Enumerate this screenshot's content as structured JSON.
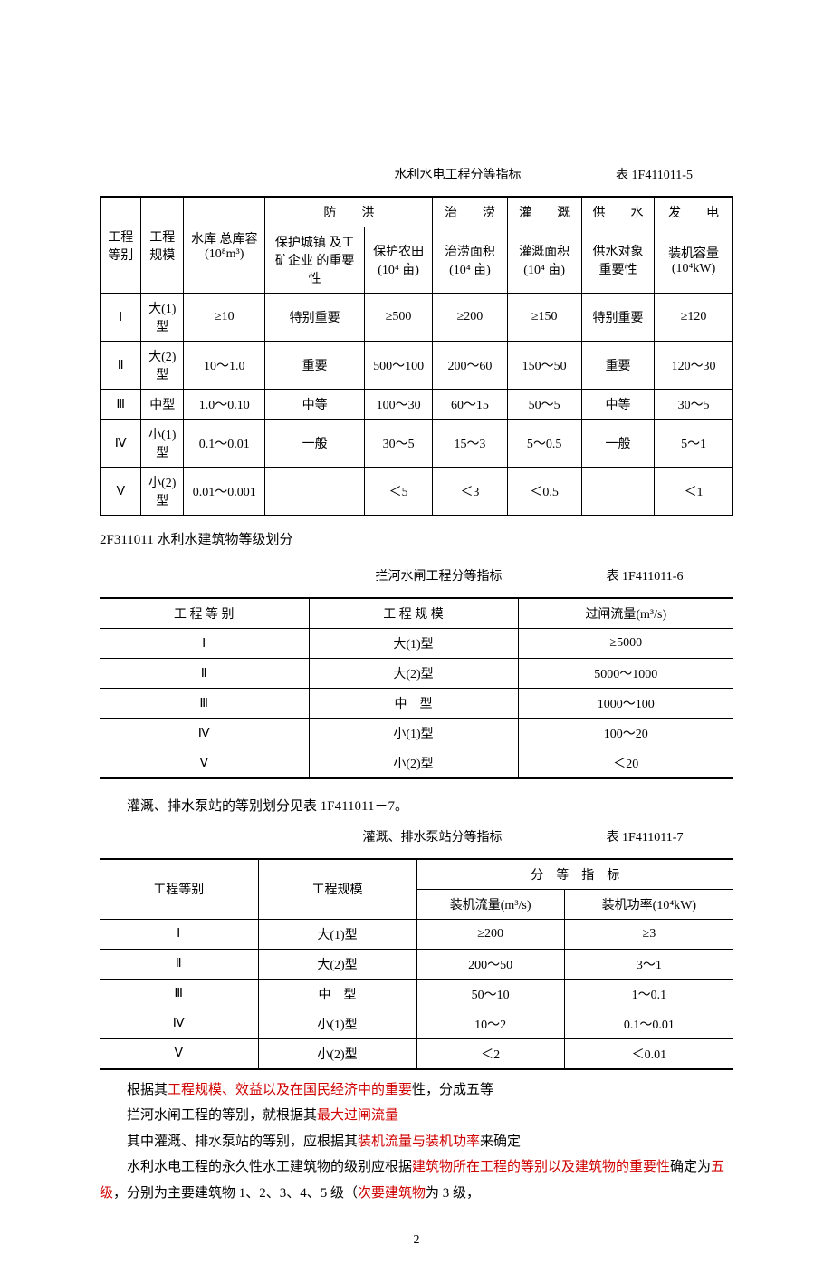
{
  "table1": {
    "title": "水利水电工程分等指标",
    "label": "表 1F411011-5",
    "headers": {
      "c1": "工程\n等别",
      "c2": "工程\n规模",
      "c3": "水库\n总库容\n(10⁸m³)",
      "g1": "防　　洪",
      "g1a": "保护城镇\n及工矿企业\n的重要性",
      "g1b": "保护农田\n(10⁴ 亩)",
      "g2": "治　　涝",
      "g2a": "治涝面积\n(10⁴ 亩)",
      "g3": "灌　　溉",
      "g3a": "灌溉面积\n(10⁴ 亩)",
      "g4": "供　　水",
      "g4a": "供水对象\n重要性",
      "g5": "发　　电",
      "g5a": "装机容量\n(10⁴kW)"
    },
    "rows": [
      {
        "c1": "Ⅰ",
        "c2": "大(1)型",
        "c3": "≥10",
        "a": "特别重要",
        "b": "≥500",
        "c": "≥200",
        "d": "≥150",
        "e": "特别重要",
        "f": "≥120"
      },
      {
        "c1": "Ⅱ",
        "c2": "大(2)型",
        "c3": "10～1.0",
        "a": "重要",
        "b": "500～100",
        "c": "200～60",
        "d": "150～50",
        "e": "重要",
        "f": "120～30"
      },
      {
        "c1": "Ⅲ",
        "c2": "中型",
        "c3": "1.0～0.10",
        "a": "中等",
        "b": "100～30",
        "c": "60～15",
        "d": "50～5",
        "e": "中等",
        "f": "30～5"
      },
      {
        "c1": "Ⅳ",
        "c2": "小(1)型",
        "c3": "0.1～0.01",
        "a": "一般",
        "b": "30～5",
        "c": "15～3",
        "d": "5～0.5",
        "e": "一般",
        "f": "5～1"
      },
      {
        "c1": "Ⅴ",
        "c2": "小(2)型",
        "c3": "0.01～0.001",
        "a": "",
        "b": "＜5",
        "c": "＜3",
        "d": "＜0.5",
        "e": "",
        "f": "＜1"
      }
    ]
  },
  "section_heading": "2F311011 水利水建筑物等级划分",
  "table2": {
    "title": "拦河水闸工程分等指标",
    "label": "表 1F411011-6",
    "headers": {
      "c1": "工 程 等 别",
      "c2": "工 程 规 模",
      "c3": "过闸流量(m³/s)"
    },
    "rows": [
      {
        "c1": "Ⅰ",
        "c2": "大(1)型",
        "c3": "≥5000"
      },
      {
        "c1": "Ⅱ",
        "c2": "大(2)型",
        "c3": "5000～1000"
      },
      {
        "c1": "Ⅲ",
        "c2": "中　型",
        "c3": "1000～100"
      },
      {
        "c1": "Ⅳ",
        "c2": "小(1)型",
        "c3": "100～20"
      },
      {
        "c1": "Ⅴ",
        "c2": "小(2)型",
        "c3": "＜20"
      }
    ]
  },
  "intertext": "灌溉、排水泵站的等别划分见表 1F411011－7。",
  "table3": {
    "title": "灌溉、排水泵站分等指标",
    "label": "表 1F411011-7",
    "headers": {
      "c1": "工程等别",
      "c2": "工程规模",
      "g": "分　等　指　标",
      "ga": "装机流量(m³/s)",
      "gb": "装机功率(10⁴kW)"
    },
    "rows": [
      {
        "c1": "Ⅰ",
        "c2": "大(1)型",
        "a": "≥200",
        "b": "≥3"
      },
      {
        "c1": "Ⅱ",
        "c2": "大(2)型",
        "a": "200～50",
        "b": "3～1"
      },
      {
        "c1": "Ⅲ",
        "c2": "中　型",
        "a": "50～10",
        "b": "1～0.1"
      },
      {
        "c1": "Ⅳ",
        "c2": "小(1)型",
        "a": "10～2",
        "b": "0.1～0.01"
      },
      {
        "c1": "Ⅴ",
        "c2": "小(2)型",
        "a": "＜2",
        "b": "＜0.01"
      }
    ]
  },
  "body": {
    "p1a": "根据其",
    "p1b": "工程规模、效益以及在国民经济中的重要",
    "p1c": "性，分成五等",
    "p2a": "拦河水闸工程的等别，就根据其",
    "p2b": "最大过闸流量",
    "p3a": "其中灌溉、排水泵站的等别，应根据其",
    "p3b": "装机流量与装机功率",
    "p3c": "来确定",
    "p4a": "水利水电工程的永久性水工建筑物的级别应根据",
    "p4b": "建筑物所在工程的等别以及建筑物的重要性",
    "p4c": "确定为",
    "p4d": "五级",
    "p4e": "，分别为主要建筑物 1、2、3、4、5 级（",
    "p4f": "次要建筑物",
    "p4g": "为 3 级，"
  },
  "pagenum": "2",
  "colors": {
    "highlight": "#d00000",
    "border": "#000000"
  }
}
